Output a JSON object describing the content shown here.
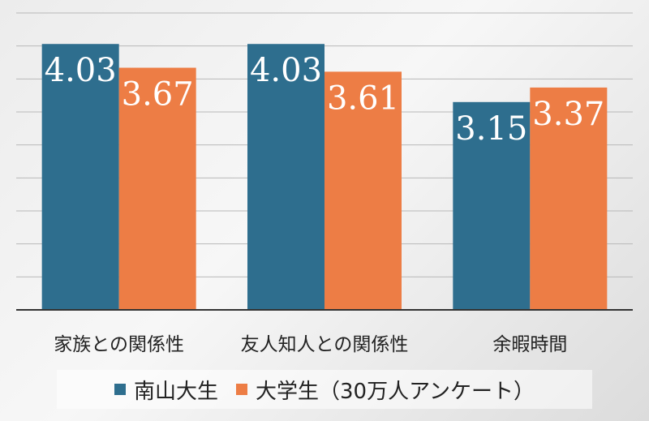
{
  "chart_data": {
    "type": "bar",
    "categories": [
      "家族との関係性",
      "友人知人との関係性",
      "余暇時間"
    ],
    "series": [
      {
        "name": "南山大生",
        "values": [
          4.03,
          4.03,
          3.15
        ],
        "color": "#2e6e8e"
      },
      {
        "name": "大学生（30万人アンケート）",
        "values": [
          3.67,
          3.61,
          3.37
        ],
        "color": "#ed7d45"
      }
    ],
    "ylim": [
      0,
      4.5
    ],
    "grid": true,
    "legend_position": "bottom"
  }
}
